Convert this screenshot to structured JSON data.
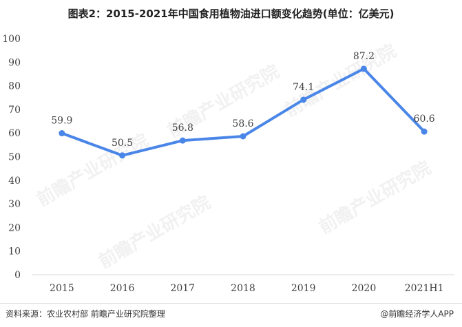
{
  "chart_data": {
    "type": "line",
    "title": "图表2：2015-2021年中国食用植物油进口额变化趋势(单位：亿美元)",
    "categories": [
      "2015",
      "2016",
      "2017",
      "2018",
      "2019",
      "2020",
      "2021H1"
    ],
    "values": [
      59.9,
      50.5,
      56.8,
      58.6,
      74.1,
      87.2,
      60.6
    ],
    "data_labels": [
      "59.9",
      "50.5",
      "56.8",
      "58.6",
      "74.1",
      "87.2",
      "60.6"
    ],
    "ylim": [
      0,
      100
    ],
    "yticks": [
      "0",
      "10",
      "20",
      "30",
      "40",
      "50",
      "60",
      "70",
      "80",
      "90",
      "100"
    ],
    "xlabel": "",
    "ylabel": "",
    "grid": false,
    "legend": "none",
    "line_color": "#4a86e8"
  },
  "footer": {
    "source": "资料来源：农业农村部 前瞻产业研究院整理",
    "brand": "@前瞻经济学人APP"
  },
  "watermark": {
    "text": "前瞻产业研究院"
  }
}
